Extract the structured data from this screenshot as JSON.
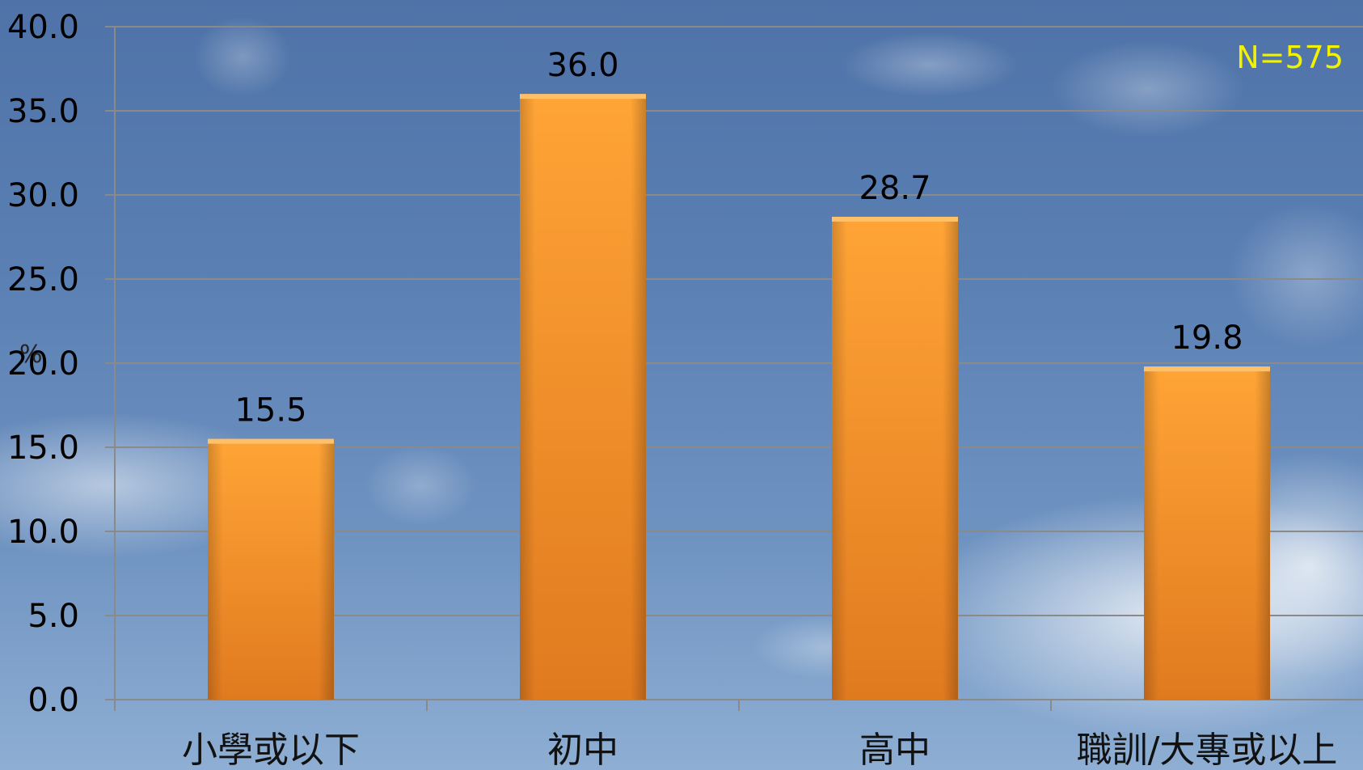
{
  "chart_data": {
    "type": "bar",
    "categories": [
      "小學或以下",
      "初中",
      "高中",
      "職訓/大專或以上"
    ],
    "values": [
      15.5,
      36.0,
      28.7,
      19.8
    ],
    "data_labels": [
      "15.5",
      "36.0",
      "28.7",
      "19.8"
    ],
    "ylabel": "%",
    "ylim": [
      0,
      40
    ],
    "yticks": [
      "0.0",
      "5.0",
      "10.0",
      "15.0",
      "20.0",
      "25.0",
      "30.0",
      "35.0",
      "40.0"
    ],
    "annotation": "N=575",
    "grid": true,
    "bar_color": "#f7922a",
    "background": "sky with clouds"
  }
}
